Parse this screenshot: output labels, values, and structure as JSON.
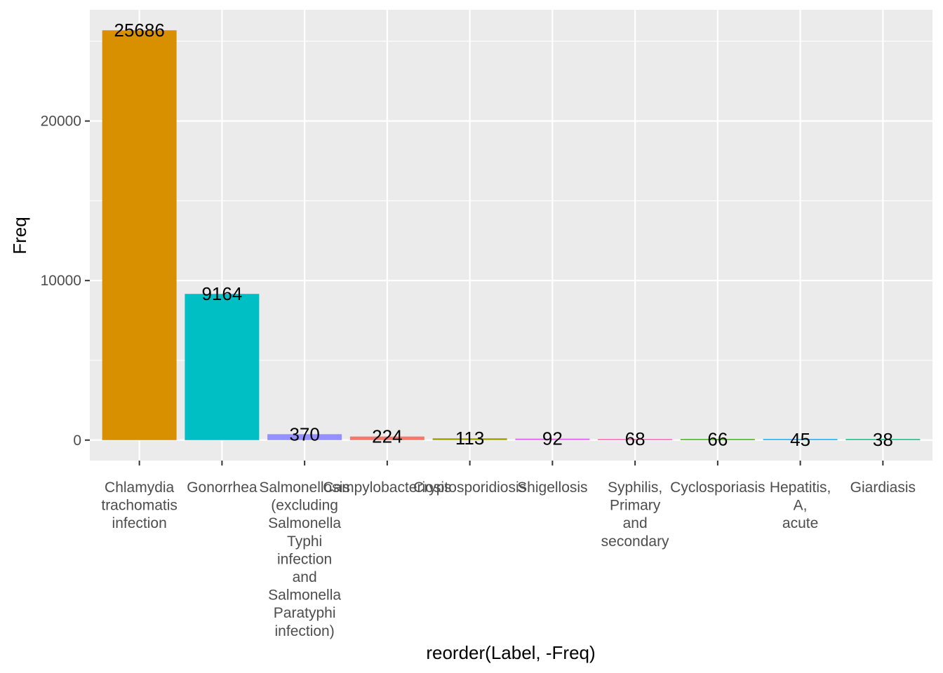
{
  "chart_data": {
    "type": "bar",
    "categories": [
      [
        "Chlamydia",
        "trachomatis",
        "infection"
      ],
      [
        "Gonorrhea"
      ],
      [
        "Salmonellosis",
        "(excluding",
        "Salmonella",
        "Typhi",
        "infection",
        "and",
        "Salmonella",
        "Paratyphi",
        "infection)"
      ],
      [
        "Campylobacteriosis"
      ],
      [
        "Cryptosporidiosis"
      ],
      [
        "Shigellosis"
      ],
      [
        "Syphilis,",
        "Primary",
        "and",
        "secondary"
      ],
      [
        "Cyclosporiasis"
      ],
      [
        "Hepatitis,",
        "A,",
        "acute"
      ],
      [
        "Giardiasis"
      ]
    ],
    "values": [
      25686,
      9164,
      370,
      224,
      113,
      92,
      68,
      66,
      45,
      38
    ],
    "colors": [
      "#D89000",
      "#00BFC4",
      "#9590FF",
      "#F8766D",
      "#A3A500",
      "#E76BF3",
      "#FF62BC",
      "#39B600",
      "#00B0F6",
      "#00BF7D"
    ],
    "data_labels": [
      "25686",
      "9164",
      "370",
      "224",
      "113",
      "92",
      "68",
      "66",
      "45",
      "38"
    ],
    "y_ticks": [
      0,
      10000,
      20000
    ],
    "y_tick_labels": [
      "0",
      "10000",
      "20000"
    ],
    "ylim": [
      -1284,
      26970
    ],
    "xlabel": "reorder(Label, -Freq)",
    "ylabel": "Freq",
    "grid": true,
    "panel_background": "#EBEBEB",
    "grid_color": "#FFFFFF"
  }
}
